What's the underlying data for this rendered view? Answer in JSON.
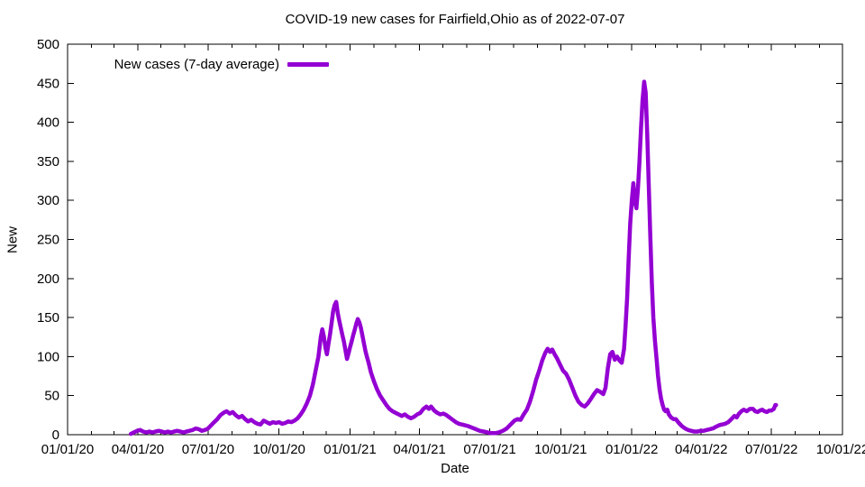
{
  "page": {
    "background": "#ffffff"
  },
  "colors": {
    "line": "#9400d3",
    "axis": "#000000",
    "text": "#000000"
  },
  "chart_data": {
    "type": "line",
    "title": "COVID-19 new cases for Fairfield,Ohio as of 2022-07-07",
    "xlabel": "Date",
    "ylabel": "New",
    "grid": false,
    "legend_position": "top-left-inside",
    "legend": [
      {
        "label": "New cases (7-day average)",
        "color": "#9400d3"
      }
    ],
    "xlim": [
      "2020-01-01",
      "2022-10-01"
    ],
    "ylim": [
      0,
      500
    ],
    "y_ticks": [
      0,
      50,
      100,
      150,
      200,
      250,
      300,
      350,
      400,
      450,
      500
    ],
    "x_major_ticks": [
      {
        "date": "2020-01-01",
        "label": "01/01/20"
      },
      {
        "date": "2020-04-01",
        "label": "04/01/20"
      },
      {
        "date": "2020-07-01",
        "label": "07/01/20"
      },
      {
        "date": "2020-10-01",
        "label": "10/01/20"
      },
      {
        "date": "2021-01-01",
        "label": "01/01/21"
      },
      {
        "date": "2021-04-01",
        "label": "04/01/21"
      },
      {
        "date": "2021-07-01",
        "label": "07/01/21"
      },
      {
        "date": "2021-10-01",
        "label": "10/01/21"
      },
      {
        "date": "2022-01-01",
        "label": "01/01/22"
      },
      {
        "date": "2022-04-01",
        "label": "04/01/22"
      },
      {
        "date": "2022-07-01",
        "label": "07/01/22"
      },
      {
        "date": "2022-10-01",
        "label": "10/01/22"
      }
    ],
    "x_minor_ticks": "monthly",
    "series": [
      {
        "name": "New cases (7-day average)",
        "color": "#9400d3",
        "points": [
          [
            "2020-03-23",
            1
          ],
          [
            "2020-03-27",
            3
          ],
          [
            "2020-03-31",
            5
          ],
          [
            "2020-04-04",
            6
          ],
          [
            "2020-04-08",
            4
          ],
          [
            "2020-04-12",
            3
          ],
          [
            "2020-04-16",
            4
          ],
          [
            "2020-04-20",
            3
          ],
          [
            "2020-04-24",
            4
          ],
          [
            "2020-04-28",
            5
          ],
          [
            "2020-05-02",
            4
          ],
          [
            "2020-05-06",
            3
          ],
          [
            "2020-05-10",
            4
          ],
          [
            "2020-05-14",
            3
          ],
          [
            "2020-05-18",
            4
          ],
          [
            "2020-05-22",
            5
          ],
          [
            "2020-05-26",
            4
          ],
          [
            "2020-05-30",
            3
          ],
          [
            "2020-06-03",
            4
          ],
          [
            "2020-06-07",
            5
          ],
          [
            "2020-06-11",
            6
          ],
          [
            "2020-06-15",
            8
          ],
          [
            "2020-06-19",
            7
          ],
          [
            "2020-06-23",
            5
          ],
          [
            "2020-06-27",
            6
          ],
          [
            "2020-07-01",
            8
          ],
          [
            "2020-07-05",
            12
          ],
          [
            "2020-07-09",
            16
          ],
          [
            "2020-07-13",
            20
          ],
          [
            "2020-07-17",
            25
          ],
          [
            "2020-07-21",
            28
          ],
          [
            "2020-07-25",
            30
          ],
          [
            "2020-07-29",
            27
          ],
          [
            "2020-08-02",
            29
          ],
          [
            "2020-08-06",
            25
          ],
          [
            "2020-08-10",
            22
          ],
          [
            "2020-08-14",
            24
          ],
          [
            "2020-08-18",
            20
          ],
          [
            "2020-08-22",
            17
          ],
          [
            "2020-08-26",
            19
          ],
          [
            "2020-08-30",
            16
          ],
          [
            "2020-09-03",
            14
          ],
          [
            "2020-09-07",
            13
          ],
          [
            "2020-09-11",
            18
          ],
          [
            "2020-09-15",
            16
          ],
          [
            "2020-09-19",
            14
          ],
          [
            "2020-09-23",
            16
          ],
          [
            "2020-09-27",
            15
          ],
          [
            "2020-10-01",
            16
          ],
          [
            "2020-10-05",
            14
          ],
          [
            "2020-10-09",
            15
          ],
          [
            "2020-10-13",
            17
          ],
          [
            "2020-10-17",
            16
          ],
          [
            "2020-10-21",
            18
          ],
          [
            "2020-10-25",
            21
          ],
          [
            "2020-10-29",
            26
          ],
          [
            "2020-11-02",
            32
          ],
          [
            "2020-11-06",
            40
          ],
          [
            "2020-11-10",
            50
          ],
          [
            "2020-11-14",
            65
          ],
          [
            "2020-11-18",
            85
          ],
          [
            "2020-11-21",
            100
          ],
          [
            "2020-11-24",
            125
          ],
          [
            "2020-11-26",
            135
          ],
          [
            "2020-11-28",
            126
          ],
          [
            "2020-11-30",
            112
          ],
          [
            "2020-12-02",
            103
          ],
          [
            "2020-12-04",
            116
          ],
          [
            "2020-12-06",
            128
          ],
          [
            "2020-12-08",
            142
          ],
          [
            "2020-12-10",
            158
          ],
          [
            "2020-12-12",
            166
          ],
          [
            "2020-12-14",
            170
          ],
          [
            "2020-12-16",
            156
          ],
          [
            "2020-12-18",
            146
          ],
          [
            "2020-12-20",
            137
          ],
          [
            "2020-12-22",
            128
          ],
          [
            "2020-12-24",
            119
          ],
          [
            "2020-12-26",
            108
          ],
          [
            "2020-12-28",
            97
          ],
          [
            "2020-12-30",
            104
          ],
          [
            "2021-01-01",
            112
          ],
          [
            "2021-01-03",
            119
          ],
          [
            "2021-01-05",
            127
          ],
          [
            "2021-01-07",
            134
          ],
          [
            "2021-01-09",
            142
          ],
          [
            "2021-01-11",
            148
          ],
          [
            "2021-01-13",
            144
          ],
          [
            "2021-01-15",
            137
          ],
          [
            "2021-01-17",
            127
          ],
          [
            "2021-01-19",
            117
          ],
          [
            "2021-01-21",
            107
          ],
          [
            "2021-01-23",
            99
          ],
          [
            "2021-01-25",
            92
          ],
          [
            "2021-01-28",
            80
          ],
          [
            "2021-02-01",
            68
          ],
          [
            "2021-02-05",
            58
          ],
          [
            "2021-02-09",
            50
          ],
          [
            "2021-02-13",
            44
          ],
          [
            "2021-02-17",
            38
          ],
          [
            "2021-02-21",
            33
          ],
          [
            "2021-02-25",
            30
          ],
          [
            "2021-03-01",
            28
          ],
          [
            "2021-03-05",
            26
          ],
          [
            "2021-03-09",
            24
          ],
          [
            "2021-03-13",
            26
          ],
          [
            "2021-03-17",
            23
          ],
          [
            "2021-03-21",
            21
          ],
          [
            "2021-03-25",
            23
          ],
          [
            "2021-03-29",
            26
          ],
          [
            "2021-04-02",
            28
          ],
          [
            "2021-04-06",
            33
          ],
          [
            "2021-04-10",
            36
          ],
          [
            "2021-04-13",
            33
          ],
          [
            "2021-04-16",
            36
          ],
          [
            "2021-04-20",
            31
          ],
          [
            "2021-04-24",
            28
          ],
          [
            "2021-04-28",
            26
          ],
          [
            "2021-05-02",
            27
          ],
          [
            "2021-05-06",
            25
          ],
          [
            "2021-05-10",
            22
          ],
          [
            "2021-05-14",
            19
          ],
          [
            "2021-05-18",
            16
          ],
          [
            "2021-05-22",
            14
          ],
          [
            "2021-05-26",
            13
          ],
          [
            "2021-05-30",
            12
          ],
          [
            "2021-06-03",
            11
          ],
          [
            "2021-06-08",
            9
          ],
          [
            "2021-06-13",
            7
          ],
          [
            "2021-06-18",
            5
          ],
          [
            "2021-06-23",
            4
          ],
          [
            "2021-06-28",
            3
          ],
          [
            "2021-07-03",
            2
          ],
          [
            "2021-07-08",
            2
          ],
          [
            "2021-07-13",
            3
          ],
          [
            "2021-07-18",
            5
          ],
          [
            "2021-07-23",
            8
          ],
          [
            "2021-07-28",
            13
          ],
          [
            "2021-08-02",
            18
          ],
          [
            "2021-08-06",
            20
          ],
          [
            "2021-08-10",
            19
          ],
          [
            "2021-08-14",
            26
          ],
          [
            "2021-08-18",
            32
          ],
          [
            "2021-08-22",
            42
          ],
          [
            "2021-08-26",
            55
          ],
          [
            "2021-08-30",
            70
          ],
          [
            "2021-09-03",
            82
          ],
          [
            "2021-09-07",
            95
          ],
          [
            "2021-09-11",
            105
          ],
          [
            "2021-09-14",
            110
          ],
          [
            "2021-09-17",
            106
          ],
          [
            "2021-09-20",
            109
          ],
          [
            "2021-09-23",
            103
          ],
          [
            "2021-09-26",
            98
          ],
          [
            "2021-09-30",
            90
          ],
          [
            "2021-10-04",
            82
          ],
          [
            "2021-10-08",
            78
          ],
          [
            "2021-10-12",
            70
          ],
          [
            "2021-10-16",
            60
          ],
          [
            "2021-10-20",
            50
          ],
          [
            "2021-10-24",
            42
          ],
          [
            "2021-10-28",
            38
          ],
          [
            "2021-11-01",
            36
          ],
          [
            "2021-11-05",
            40
          ],
          [
            "2021-11-09",
            46
          ],
          [
            "2021-11-13",
            52
          ],
          [
            "2021-11-17",
            57
          ],
          [
            "2021-11-21",
            55
          ],
          [
            "2021-11-25",
            52
          ],
          [
            "2021-11-28",
            60
          ],
          [
            "2021-12-01",
            85
          ],
          [
            "2021-12-04",
            103
          ],
          [
            "2021-12-07",
            106
          ],
          [
            "2021-12-10",
            96
          ],
          [
            "2021-12-13",
            100
          ],
          [
            "2021-12-16",
            95
          ],
          [
            "2021-12-19",
            92
          ],
          [
            "2021-12-22",
            110
          ],
          [
            "2021-12-24",
            140
          ],
          [
            "2021-12-26",
            175
          ],
          [
            "2021-12-28",
            225
          ],
          [
            "2021-12-30",
            270
          ],
          [
            "2022-01-01",
            300
          ],
          [
            "2022-01-03",
            322
          ],
          [
            "2022-01-05",
            298
          ],
          [
            "2022-01-07",
            290
          ],
          [
            "2022-01-09",
            315
          ],
          [
            "2022-01-11",
            350
          ],
          [
            "2022-01-13",
            392
          ],
          [
            "2022-01-15",
            428
          ],
          [
            "2022-01-17",
            452
          ],
          [
            "2022-01-19",
            438
          ],
          [
            "2022-01-21",
            385
          ],
          [
            "2022-01-23",
            320
          ],
          [
            "2022-01-25",
            255
          ],
          [
            "2022-01-27",
            195
          ],
          [
            "2022-01-29",
            150
          ],
          [
            "2022-01-31",
            120
          ],
          [
            "2022-02-02",
            98
          ],
          [
            "2022-02-04",
            75
          ],
          [
            "2022-02-06",
            58
          ],
          [
            "2022-02-08",
            46
          ],
          [
            "2022-02-10",
            38
          ],
          [
            "2022-02-12",
            32
          ],
          [
            "2022-02-14",
            30
          ],
          [
            "2022-02-16",
            32
          ],
          [
            "2022-02-18",
            26
          ],
          [
            "2022-02-21",
            22
          ],
          [
            "2022-02-24",
            20
          ],
          [
            "2022-02-27",
            20
          ],
          [
            "2022-03-03",
            15
          ],
          [
            "2022-03-07",
            11
          ],
          [
            "2022-03-11",
            8
          ],
          [
            "2022-03-15",
            6
          ],
          [
            "2022-03-19",
            5
          ],
          [
            "2022-03-23",
            4
          ],
          [
            "2022-03-27",
            4
          ],
          [
            "2022-03-31",
            5
          ],
          [
            "2022-04-04",
            5
          ],
          [
            "2022-04-08",
            6
          ],
          [
            "2022-04-12",
            7
          ],
          [
            "2022-04-16",
            8
          ],
          [
            "2022-04-20",
            10
          ],
          [
            "2022-04-24",
            12
          ],
          [
            "2022-04-28",
            13
          ],
          [
            "2022-05-02",
            14
          ],
          [
            "2022-05-06",
            16
          ],
          [
            "2022-05-10",
            20
          ],
          [
            "2022-05-14",
            24
          ],
          [
            "2022-05-17",
            22
          ],
          [
            "2022-05-20",
            27
          ],
          [
            "2022-05-23",
            30
          ],
          [
            "2022-05-26",
            32
          ],
          [
            "2022-05-30",
            30
          ],
          [
            "2022-06-03",
            33
          ],
          [
            "2022-06-07",
            33
          ],
          [
            "2022-06-10",
            30
          ],
          [
            "2022-06-13",
            29
          ],
          [
            "2022-06-16",
            31
          ],
          [
            "2022-06-19",
            32
          ],
          [
            "2022-06-22",
            30
          ],
          [
            "2022-06-25",
            29
          ],
          [
            "2022-06-28",
            31
          ],
          [
            "2022-07-01",
            31
          ],
          [
            "2022-07-04",
            33
          ],
          [
            "2022-07-06",
            38
          ],
          [
            "2022-07-07",
            38
          ]
        ]
      }
    ]
  }
}
